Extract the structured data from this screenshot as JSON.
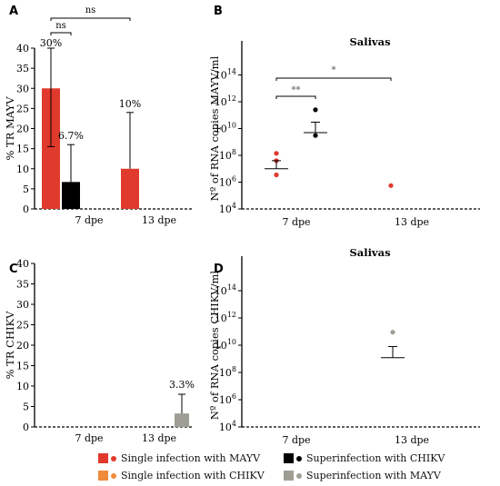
{
  "panels": {
    "A": {
      "letter": "A"
    },
    "B": {
      "letter": "B"
    },
    "C": {
      "letter": "C"
    },
    "D": {
      "letter": "D"
    }
  },
  "chart_data": [
    {
      "panel": "A",
      "type": "bar",
      "ylabel": "% TR MAYV",
      "ylim": [
        0,
        40
      ],
      "yticks": [
        "0",
        "5",
        "10",
        "15",
        "20",
        "25",
        "30",
        "35",
        "40"
      ],
      "categories": [
        "7 dpe",
        "13 dpe"
      ],
      "series": [
        {
          "group": "mayv",
          "values": [
            30,
            10
          ],
          "err_upper": [
            40,
            24
          ],
          "err_lower": [
            15.5,
            10
          ],
          "labels": [
            "30%",
            "10%"
          ]
        },
        {
          "group": "chikv_super",
          "values": [
            6.7,
            0
          ],
          "err_upper": [
            16,
            null
          ],
          "err_lower": [
            6.7,
            null
          ],
          "labels": [
            "6.7%",
            ""
          ]
        }
      ],
      "significance": [
        {
          "text": "ns",
          "between": [
            "7 dpe single",
            "7 dpe super"
          ]
        },
        {
          "text": "ns",
          "between": [
            "7 dpe single",
            "13 dpe single"
          ]
        }
      ]
    },
    {
      "panel": "B",
      "type": "scatter",
      "title": "Salivas",
      "ylabel": "Nº of RNA copies MAYV/ml",
      "yscale": "log",
      "ylim": [
        10000,
        10000000000000000
      ],
      "yticks": [
        "10^4",
        "10^6",
        "10^8",
        "10^10",
        "10^12",
        "10^14"
      ],
      "categories": [
        "7 dpe",
        "13 dpe"
      ],
      "groups": [
        {
          "group": "mayv",
          "category": "7 dpe",
          "points": [
            3500000,
            140000000,
            40000000
          ],
          "mean": 10000000,
          "sem_upper": 40000000
        },
        {
          "group": "chikv_super",
          "category": "7 dpe",
          "points": [
            3000000000,
            250000000000
          ],
          "mean": 5000000000,
          "sem_upper": 30000000000
        },
        {
          "group": "mayv",
          "category": "13 dpe",
          "points": [
            550000
          ],
          "mean": null,
          "sem_upper": null
        }
      ],
      "significance": [
        {
          "text": "**",
          "between": [
            "7 dpe single",
            "7 dpe super"
          ]
        },
        {
          "text": "*",
          "between": [
            "7 dpe single",
            "13 dpe single"
          ]
        }
      ]
    },
    {
      "panel": "C",
      "type": "bar",
      "ylabel": "% TR CHIKV",
      "ylim": [
        0,
        40
      ],
      "yticks": [
        "0",
        "5",
        "10",
        "15",
        "20",
        "25",
        "30",
        "35",
        "40"
      ],
      "categories": [
        "7 dpe",
        "13 dpe"
      ],
      "series": [
        {
          "group": "mayv_super",
          "category": "13 dpe",
          "values": [
            0,
            3.3
          ],
          "err_upper": [
            null,
            8
          ],
          "labels": [
            "",
            "3.3%"
          ]
        }
      ]
    },
    {
      "panel": "D",
      "type": "scatter",
      "title": "Salivas",
      "ylabel": "Nº of RNA copies CHIKV/ml",
      "yscale": "log",
      "ylim": [
        10000,
        10000000000000000
      ],
      "yticks": [
        "10^4",
        "10^6",
        "10^8",
        "10^10",
        "10^12",
        "10^14"
      ],
      "categories": [
        "7 dpe",
        "13 dpe"
      ],
      "groups": [
        {
          "group": "mayv_super",
          "category": "13 dpe",
          "points": [
            90000000000
          ],
          "mean": 1200000000,
          "sem_upper": 8000000000
        }
      ]
    }
  ],
  "legend": [
    {
      "key": "mayv_single",
      "label": "Single infection with MAYV",
      "color": "#e03a2c"
    },
    {
      "key": "chikv_super",
      "label": "Superinfection with CHIKV",
      "color": "#000000"
    },
    {
      "key": "chikv_single",
      "label": "Single infection with CHIKV",
      "color": "#f08a3c"
    },
    {
      "key": "mayv_super",
      "label": "Superinfection with MAYV",
      "color": "#9e9e94"
    }
  ],
  "colors": {
    "mayv": "#e03a2c",
    "chikv_super": "#000000",
    "chikv_single": "#f08a3c",
    "mayv_super": "#9e9e94"
  }
}
